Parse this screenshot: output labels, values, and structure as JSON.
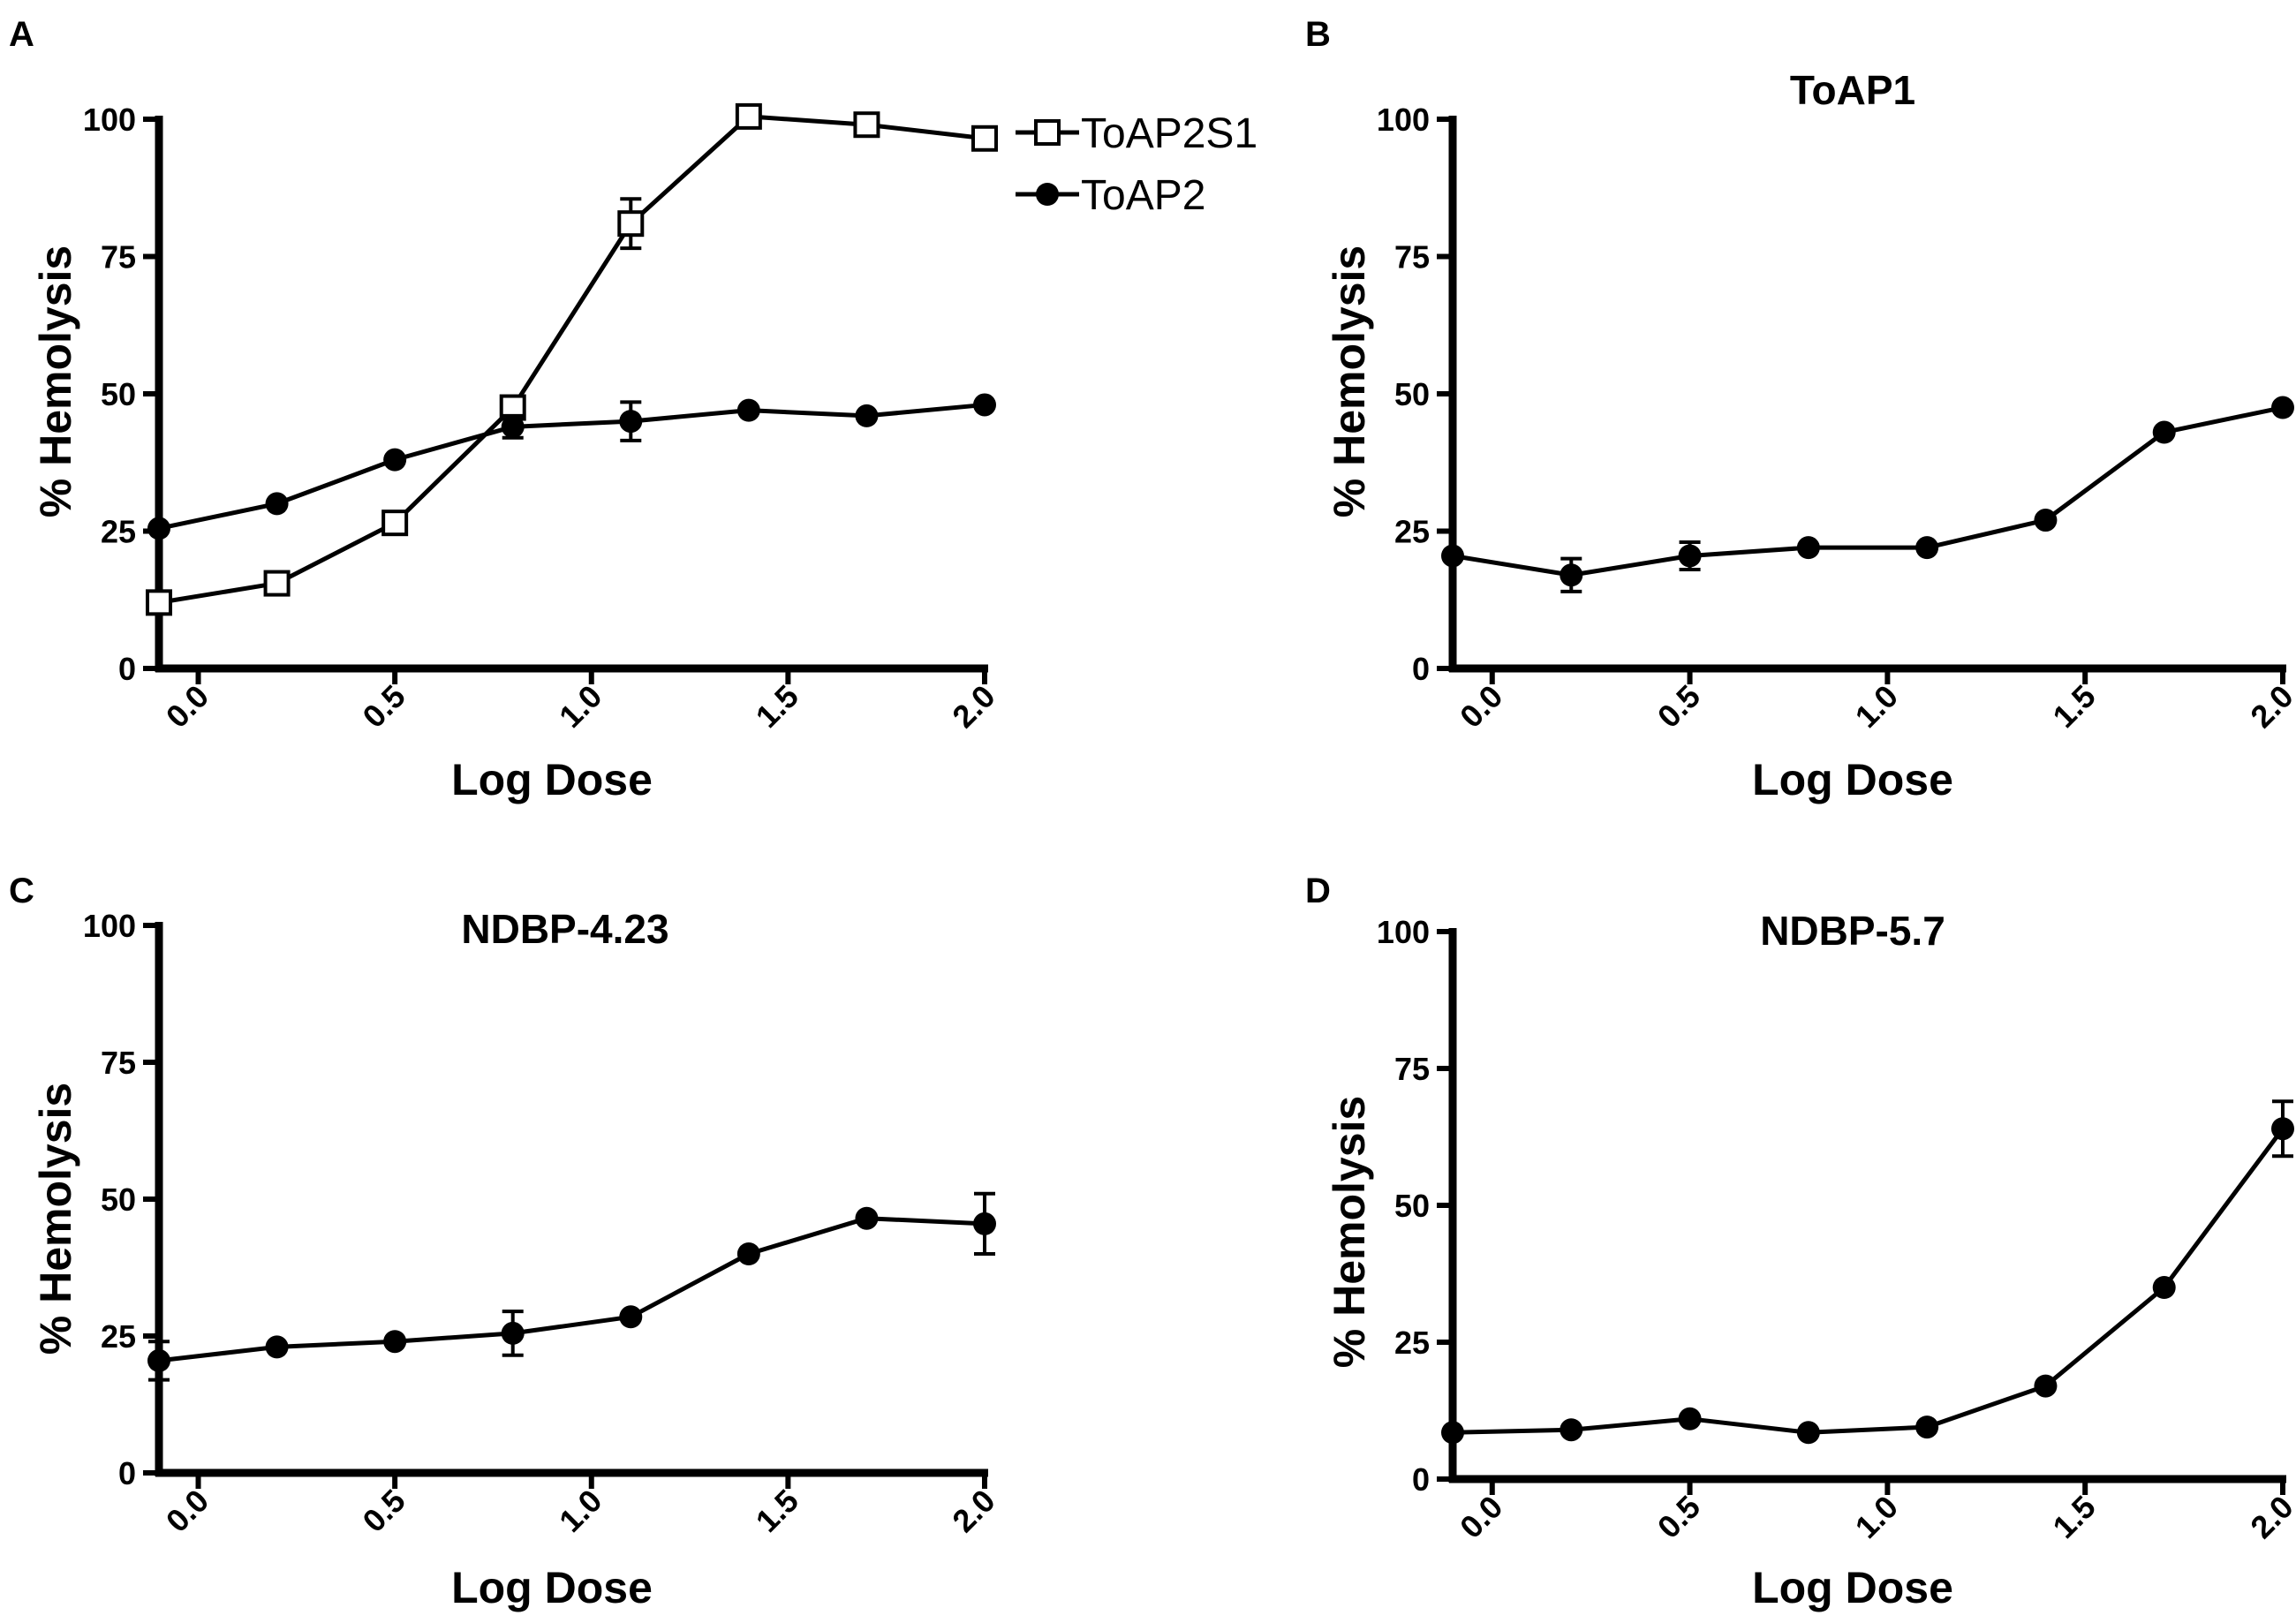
{
  "figure": {
    "panels": [
      "A",
      "B",
      "C",
      "D"
    ]
  },
  "chart_data": [
    {
      "type": "line",
      "panel": "A",
      "title": "",
      "xlabel": "Log Dose",
      "ylabel": "% Hemolysis",
      "xlim": [
        -0.1,
        2.0
      ],
      "ylim": [
        0,
        100
      ],
      "xticks": [
        0.0,
        0.5,
        1.0,
        1.5,
        2.0
      ],
      "xtick_labels": [
        "0.0",
        "0.5",
        "1.0",
        "1.5",
        "2.0"
      ],
      "yticks": [
        0,
        25,
        50,
        75,
        100
      ],
      "ytick_labels": [
        "0",
        "25",
        "50",
        "75",
        "100"
      ],
      "legend": {
        "position": "top-right",
        "entries": [
          "ToAP2S1",
          "ToAP2"
        ]
      },
      "series": [
        {
          "name": "ToAP2S1",
          "marker": "open-square",
          "x": [
            -0.1,
            0.2,
            0.5,
            0.8,
            1.1,
            1.4,
            1.7,
            2.0
          ],
          "y": [
            12,
            15.5,
            26.5,
            47.5,
            81,
            100.5,
            99,
            96.5
          ],
          "err": [
            0,
            0,
            0,
            0,
            4.5,
            0,
            0,
            0
          ]
        },
        {
          "name": "ToAP2",
          "marker": "filled-circle",
          "x": [
            -0.1,
            0.2,
            0.5,
            0.8,
            1.1,
            1.4,
            1.7,
            2.0
          ],
          "y": [
            25.5,
            30,
            38,
            44,
            45,
            47,
            46,
            48
          ],
          "err": [
            0,
            0,
            0,
            2,
            3.5,
            0,
            0,
            0
          ]
        }
      ]
    },
    {
      "type": "line",
      "panel": "B",
      "title": "ToAP1",
      "xlabel": "Log Dose",
      "ylabel": "% Hemolysis",
      "xlim": [
        -0.1,
        2.0
      ],
      "ylim": [
        0,
        100
      ],
      "xticks": [
        0.0,
        0.5,
        1.0,
        1.5,
        2.0
      ],
      "xtick_labels": [
        "0.0",
        "0.5",
        "1.0",
        "1.5",
        "2.0"
      ],
      "yticks": [
        0,
        25,
        50,
        75,
        100
      ],
      "ytick_labels": [
        "0",
        "25",
        "50",
        "75",
        "100"
      ],
      "series": [
        {
          "name": "ToAP1",
          "marker": "filled-circle",
          "x": [
            -0.1,
            0.2,
            0.5,
            0.8,
            1.1,
            1.4,
            1.7,
            2.0
          ],
          "y": [
            20.5,
            17,
            20.5,
            22,
            22,
            27,
            43,
            47.5
          ],
          "err": [
            0,
            3,
            2.5,
            0,
            0,
            0,
            0,
            0
          ]
        }
      ]
    },
    {
      "type": "line",
      "panel": "C",
      "title": "NDBP-4.23",
      "xlabel": "Log Dose",
      "ylabel": "% Hemolysis",
      "xlim": [
        -0.1,
        2.0
      ],
      "ylim": [
        0,
        100
      ],
      "xticks": [
        0.0,
        0.5,
        1.0,
        1.5,
        2.0
      ],
      "xtick_labels": [
        "0.0",
        "0.5",
        "1.0",
        "1.5",
        "2.0"
      ],
      "yticks": [
        0,
        25,
        50,
        75,
        100
      ],
      "ytick_labels": [
        "0",
        "25",
        "50",
        "75",
        "100"
      ],
      "series": [
        {
          "name": "NDBP-4.23",
          "marker": "filled-circle",
          "x": [
            -0.1,
            0.2,
            0.5,
            0.8,
            1.1,
            1.4,
            1.7,
            2.0
          ],
          "y": [
            20.5,
            23,
            24,
            25.5,
            28.5,
            40,
            46.5,
            45.5
          ],
          "err": [
            3.5,
            0,
            0,
            4,
            0,
            0,
            0,
            5.5
          ]
        }
      ]
    },
    {
      "type": "line",
      "panel": "D",
      "title": "NDBP-5.7",
      "xlabel": "Log Dose",
      "ylabel": "% Hemolysis",
      "xlim": [
        -0.1,
        2.0
      ],
      "ylim": [
        0,
        100
      ],
      "xticks": [
        0.0,
        0.5,
        1.0,
        1.5,
        2.0
      ],
      "xtick_labels": [
        "0.0",
        "0.5",
        "1.0",
        "1.5",
        "2.0"
      ],
      "yticks": [
        0,
        25,
        50,
        75,
        100
      ],
      "ytick_labels": [
        "0",
        "25",
        "50",
        "75",
        "100"
      ],
      "series": [
        {
          "name": "NDBP-5.7",
          "marker": "filled-circle",
          "x": [
            -0.1,
            0.2,
            0.5,
            0.8,
            1.1,
            1.4,
            1.7,
            2.0
          ],
          "y": [
            8.5,
            9,
            11,
            8.5,
            9.5,
            17,
            35,
            64
          ],
          "err": [
            0,
            0,
            0,
            0,
            0,
            0,
            0,
            5
          ]
        }
      ]
    }
  ]
}
